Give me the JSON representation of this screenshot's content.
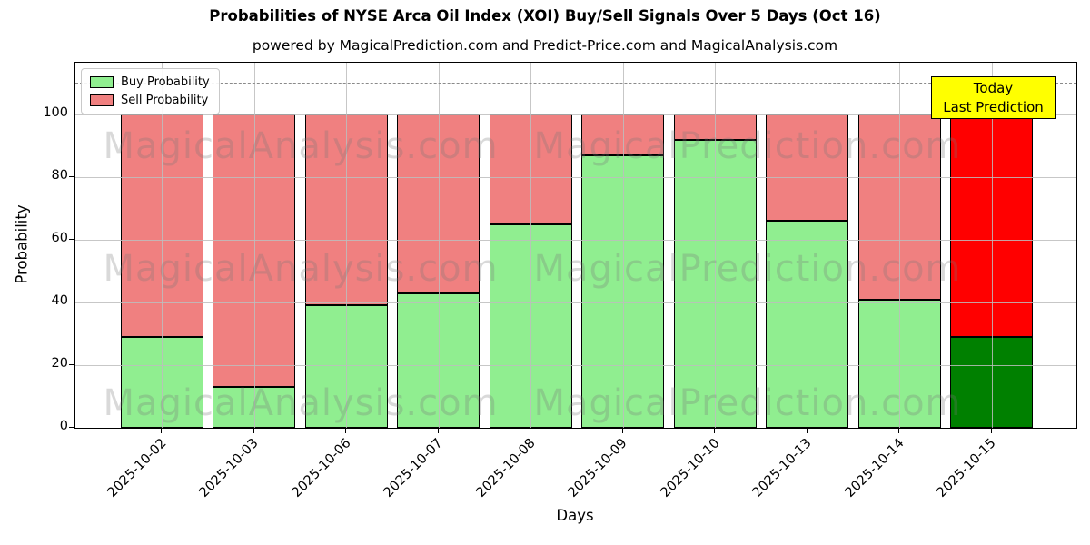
{
  "chart": {
    "title": "Probabilities of NYSE Arca Oil Index (XOI) Buy/Sell Signals Over 5 Days (Oct 16)",
    "subtitle": "powered by MagicalPrediction.com and Predict-Price.com and MagicalAnalysis.com",
    "xlabel": "Days",
    "ylabel": "Probability",
    "legend": {
      "buy": "Buy Probability",
      "sell": "Sell Probability"
    },
    "annotation": {
      "line1": "Today",
      "line2": "Last Prediction"
    }
  },
  "chart_data": {
    "type": "bar",
    "stacked": true,
    "title": "Probabilities of NYSE Arca Oil Index (XOI) Buy/Sell Signals Over 5 Days (Oct 16)",
    "subtitle": "powered by MagicalPrediction.com and Predict-Price.com and MagicalAnalysis.com",
    "xlabel": "Days",
    "ylabel": "Probability",
    "categories": [
      "2025-10-02",
      "2025-10-03",
      "2025-10-06",
      "2025-10-07",
      "2025-10-08",
      "2025-10-09",
      "2025-10-10",
      "2025-10-13",
      "2025-10-14",
      "2025-10-15"
    ],
    "series": [
      {
        "name": "Buy Probability",
        "values": [
          29,
          13,
          39,
          43,
          65,
          87,
          92,
          66,
          41,
          29
        ]
      },
      {
        "name": "Sell Probability",
        "values": [
          71,
          87,
          61,
          57,
          35,
          13,
          8,
          34,
          59,
          71
        ]
      }
    ],
    "yticks": [
      0,
      20,
      40,
      60,
      80,
      100
    ],
    "ylim": [
      0,
      116.5
    ],
    "dashed_line_y": 110,
    "grid": true,
    "legend_position": "upper left",
    "highlighted_category": "2025-10-15",
    "colors": {
      "buy": "#90EE90",
      "sell": "#F08080",
      "today_buy": "#008000",
      "today_sell": "#FF0000",
      "annotation_bg": "#FFFF00",
      "grid": "#bdbdbd",
      "watermark": "rgba(120,120,120,0.28)"
    },
    "watermark_texts": [
      "MagicalAnalysis.com",
      "MagicalPrediction.com"
    ]
  }
}
